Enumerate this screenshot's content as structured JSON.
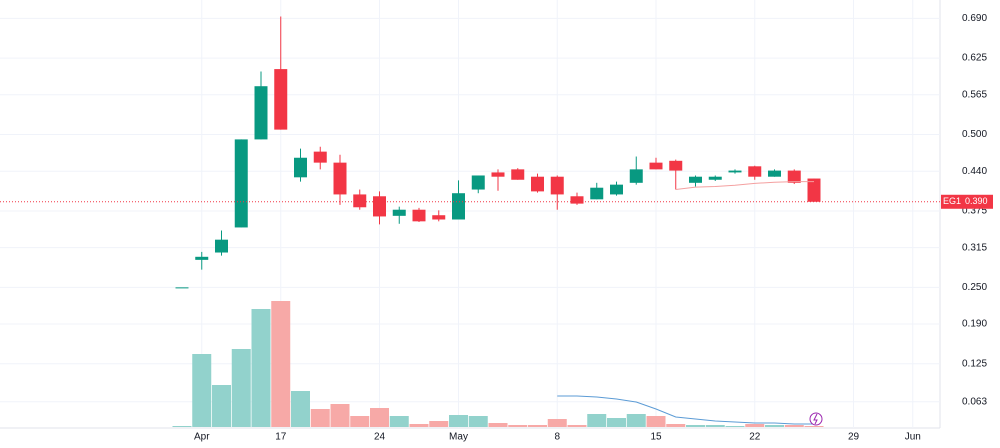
{
  "chart_data": {
    "type": "candlestick",
    "symbol": "EG1",
    "categories": [
      null,
      "Apr",
      null,
      null,
      null,
      "17",
      null,
      null,
      null,
      null,
      "24",
      null,
      null,
      null,
      "May",
      null,
      null,
      null,
      null,
      "8",
      null,
      null,
      null,
      null,
      "15",
      null,
      null,
      null,
      null,
      "22",
      null,
      null,
      null,
      null,
      "29",
      null,
      null,
      "Jun"
    ],
    "open": [
      0.25,
      0.295,
      0.307,
      0.348,
      0.492,
      0.607,
      0.43,
      0.472,
      0.454,
      0.402,
      0.399,
      0.367,
      0.377,
      0.368,
      0.361,
      0.41,
      0.438,
      0.443,
      0.431,
      0.431,
      0.399,
      0.394,
      0.402,
      0.421,
      0.454,
      0.457,
      0.421,
      0.426,
      0.438,
      0.448,
      0.431,
      0.441,
      0.428,
      null,
      null,
      null,
      null,
      null
    ],
    "high": [
      0.25,
      0.308,
      0.343,
      0.492,
      0.603,
      0.693,
      0.477,
      0.48,
      0.467,
      0.41,
      0.407,
      0.382,
      0.38,
      0.376,
      0.425,
      0.433,
      0.443,
      0.445,
      0.436,
      0.433,
      0.405,
      0.421,
      0.423,
      0.464,
      0.462,
      0.459,
      0.433,
      0.433,
      0.443,
      0.449,
      0.443,
      0.443,
      0.428,
      null,
      null,
      null,
      null,
      null
    ],
    "low": [
      0.25,
      0.279,
      0.302,
      0.348,
      0.492,
      0.508,
      0.423,
      0.443,
      0.385,
      0.377,
      0.353,
      0.354,
      0.357,
      0.358,
      0.361,
      0.404,
      0.408,
      0.426,
      0.405,
      0.377,
      0.385,
      0.394,
      0.4,
      0.418,
      0.443,
      0.41,
      0.415,
      0.424,
      0.436,
      0.426,
      0.431,
      0.419,
      0.39,
      null,
      null,
      null,
      null,
      null
    ],
    "close": [
      0.25,
      0.3,
      0.328,
      0.492,
      0.579,
      0.508,
      0.462,
      0.454,
      0.402,
      0.381,
      0.366,
      0.377,
      0.358,
      0.361,
      0.404,
      0.433,
      0.431,
      0.426,
      0.407,
      0.402,
      0.387,
      0.413,
      0.418,
      0.443,
      0.443,
      0.441,
      0.431,
      0.431,
      0.441,
      0.431,
      0.441,
      0.421,
      0.39,
      null,
      null,
      null,
      null,
      null
    ],
    "price_ma": [
      null,
      null,
      null,
      null,
      null,
      null,
      null,
      null,
      null,
      null,
      null,
      null,
      null,
      null,
      null,
      null,
      null,
      null,
      null,
      null,
      null,
      null,
      null,
      null,
      null,
      0.41,
      0.414,
      0.415,
      0.417,
      0.42,
      0.422,
      0.423,
      0.423,
      null,
      null,
      null,
      null,
      null
    ],
    "volume": [
      1,
      73,
      42,
      78,
      118,
      126,
      36,
      18,
      23,
      11,
      19,
      11,
      3,
      6,
      12,
      11,
      4,
      2,
      2,
      8,
      2,
      13,
      9,
      13,
      11,
      3,
      2,
      2,
      1,
      3,
      2,
      2,
      1,
      null,
      null,
      null,
      null,
      null
    ],
    "volume_ma": [
      null,
      null,
      null,
      null,
      null,
      null,
      null,
      null,
      null,
      null,
      null,
      null,
      null,
      null,
      null,
      null,
      null,
      null,
      null,
      31,
      31,
      30,
      28,
      25,
      18,
      10,
      8,
      6,
      5,
      4,
      4,
      3,
      3,
      null,
      null,
      null,
      null,
      null
    ],
    "volume_ylim": [
      0,
      250
    ],
    "up_color": "#089981",
    "down_color": "#f23645",
    "volume_up_color": "#92d2cc",
    "volume_down_color": "#f7a9a7",
    "price_ma_color": "#f4a0a0",
    "volume_ma_color": "#5b9bd5",
    "ylim": [
      0.02,
      0.72
    ],
    "yticks": [
      {
        "value": 0.69,
        "label": "0.690"
      },
      0.625,
      0.565,
      {
        "value": 0.5,
        "label": "0.500"
      },
      {
        "value": 0.44,
        "label": "0.440"
      },
      0.375,
      0.315,
      {
        "value": 0.25,
        "label": "0.250"
      },
      {
        "value": 0.19,
        "label": "0.190"
      },
      0.125,
      0.063
    ],
    "last_price": {
      "value": 0.39,
      "label": "0.390"
    },
    "grid": true
  }
}
